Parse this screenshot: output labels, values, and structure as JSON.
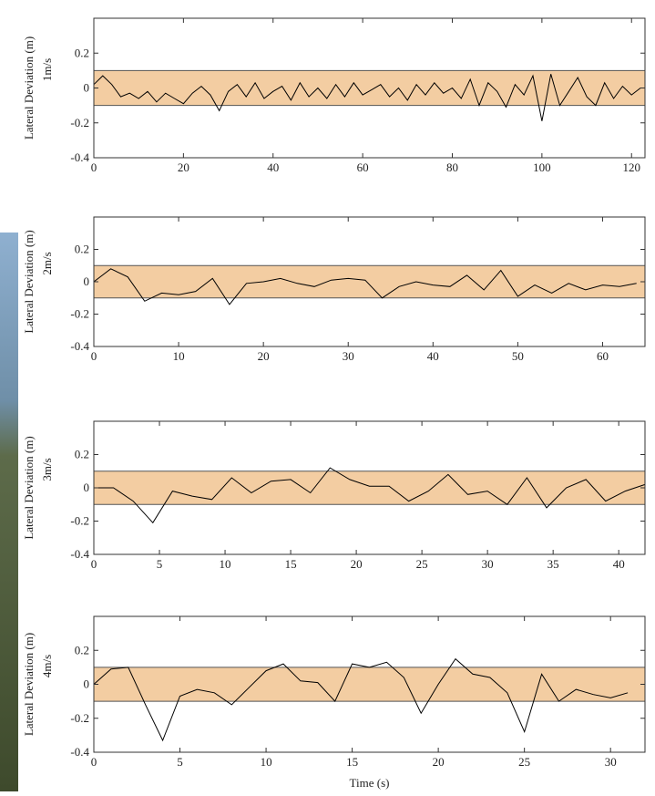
{
  "chart_data": [
    {
      "type": "line",
      "ylabel": "Lateral Deviation (m)",
      "ylabel2": "1m/s",
      "color": "#000000",
      "band": {
        "ymin": -0.1,
        "ymax": 0.1,
        "color": "#f3cda2"
      },
      "xlim": [
        0,
        123
      ],
      "xticks": [
        0,
        20,
        40,
        60,
        80,
        100,
        120
      ],
      "ylim": [
        -0.4,
        0.4
      ],
      "yticks": [
        -0.4,
        -0.2,
        0,
        0.2
      ],
      "x": [
        0,
        2,
        4,
        6,
        8,
        10,
        12,
        14,
        16,
        18,
        20,
        22,
        24,
        26,
        28,
        30,
        32,
        34,
        36,
        38,
        40,
        42,
        44,
        46,
        48,
        50,
        52,
        54,
        56,
        58,
        60,
        62,
        64,
        66,
        68,
        70,
        72,
        74,
        76,
        78,
        80,
        82,
        84,
        86,
        88,
        90,
        92,
        94,
        96,
        98,
        100,
        102,
        104,
        106,
        108,
        110,
        112,
        114,
        116,
        118,
        120,
        122
      ],
      "values": [
        0.02,
        0.07,
        0.02,
        -0.05,
        -0.03,
        -0.06,
        -0.02,
        -0.08,
        -0.03,
        -0.06,
        -0.09,
        -0.03,
        0.01,
        -0.04,
        -0.13,
        -0.02,
        0.02,
        -0.05,
        0.03,
        -0.06,
        -0.02,
        0.01,
        -0.07,
        0.03,
        -0.05,
        0.0,
        -0.06,
        0.02,
        -0.05,
        0.03,
        -0.04,
        -0.01,
        0.02,
        -0.05,
        0.0,
        -0.07,
        0.02,
        -0.04,
        0.03,
        -0.03,
        0.0,
        -0.06,
        0.05,
        -0.1,
        0.03,
        -0.02,
        -0.11,
        0.02,
        -0.04,
        0.07,
        -0.19,
        0.08,
        -0.1,
        -0.02,
        0.06,
        -0.05,
        -0.1,
        0.03,
        -0.06,
        0.01,
        -0.04,
        0.0
      ]
    },
    {
      "type": "line",
      "ylabel": "Lateral Deviation (m)",
      "ylabel2": "2m/s",
      "color": "#000000",
      "band": {
        "ymin": -0.1,
        "ymax": 0.1,
        "color": "#f3cda2"
      },
      "xlim": [
        0,
        65
      ],
      "xticks": [
        0,
        10,
        20,
        30,
        40,
        50,
        60
      ],
      "ylim": [
        -0.4,
        0.4
      ],
      "yticks": [
        -0.4,
        -0.2,
        0,
        0.2
      ],
      "x": [
        0,
        2,
        4,
        6,
        8,
        10,
        12,
        14,
        16,
        18,
        20,
        22,
        24,
        26,
        28,
        30,
        32,
        34,
        36,
        38,
        40,
        42,
        44,
        46,
        48,
        50,
        52,
        54,
        56,
        58,
        60,
        62,
        64
      ],
      "values": [
        0.0,
        0.08,
        0.03,
        -0.12,
        -0.07,
        -0.08,
        -0.06,
        0.02,
        -0.14,
        -0.01,
        0.0,
        0.02,
        -0.01,
        -0.03,
        0.01,
        0.02,
        0.01,
        -0.1,
        -0.03,
        0.0,
        -0.02,
        -0.03,
        0.04,
        -0.05,
        0.07,
        -0.09,
        -0.02,
        -0.07,
        -0.01,
        -0.05,
        -0.02,
        -0.03,
        -0.01
      ]
    },
    {
      "type": "line",
      "ylabel": "Lateral Deviation (m)",
      "ylabel2": "3m/s",
      "color": "#000000",
      "band": {
        "ymin": -0.1,
        "ymax": 0.1,
        "color": "#f3cda2"
      },
      "xlim": [
        0,
        42
      ],
      "xticks": [
        0,
        5,
        10,
        15,
        20,
        25,
        30,
        35,
        40
      ],
      "ylim": [
        -0.4,
        0.4
      ],
      "yticks": [
        -0.4,
        -0.2,
        0,
        0.2
      ],
      "x": [
        0,
        1.5,
        3,
        4.5,
        6,
        7.5,
        9,
        10.5,
        12,
        13.5,
        15,
        16.5,
        18,
        19.5,
        21,
        22.5,
        24,
        25.5,
        27,
        28.5,
        30,
        31.5,
        33,
        34.5,
        36,
        37.5,
        39,
        40.5,
        42
      ],
      "values": [
        0.0,
        0.0,
        -0.08,
        -0.21,
        -0.02,
        -0.05,
        -0.07,
        0.06,
        -0.03,
        0.04,
        0.05,
        -0.03,
        0.12,
        0.05,
        0.01,
        0.01,
        -0.08,
        -0.02,
        0.08,
        -0.04,
        -0.02,
        -0.1,
        0.06,
        -0.12,
        0.0,
        0.05,
        -0.08,
        -0.02,
        0.02
      ]
    },
    {
      "type": "line",
      "ylabel": "Lateral Deviation (m)",
      "ylabel2": "4m/s",
      "xlabel": "Time (s)",
      "color": "#000000",
      "band": {
        "ymin": -0.1,
        "ymax": 0.1,
        "color": "#f3cda2"
      },
      "xlim": [
        0,
        32
      ],
      "xticks": [
        0,
        5,
        10,
        15,
        20,
        25,
        30
      ],
      "ylim": [
        -0.4,
        0.4
      ],
      "yticks": [
        -0.4,
        -0.2,
        0,
        0.2
      ],
      "x": [
        0,
        1,
        2,
        3,
        4,
        5,
        6,
        7,
        8,
        9,
        10,
        11,
        12,
        13,
        14,
        15,
        16,
        17,
        18,
        19,
        20,
        21,
        22,
        23,
        24,
        25,
        26,
        27,
        28,
        29,
        30,
        31
      ],
      "values": [
        0.0,
        0.09,
        0.1,
        -0.12,
        -0.33,
        -0.07,
        -0.03,
        -0.05,
        -0.12,
        -0.02,
        0.08,
        0.12,
        0.02,
        0.01,
        -0.1,
        0.12,
        0.1,
        0.13,
        0.04,
        -0.17,
        0.0,
        0.15,
        0.06,
        0.04,
        -0.05,
        -0.28,
        0.06,
        -0.1,
        -0.03,
        -0.06,
        -0.08,
        -0.05
      ]
    }
  ]
}
